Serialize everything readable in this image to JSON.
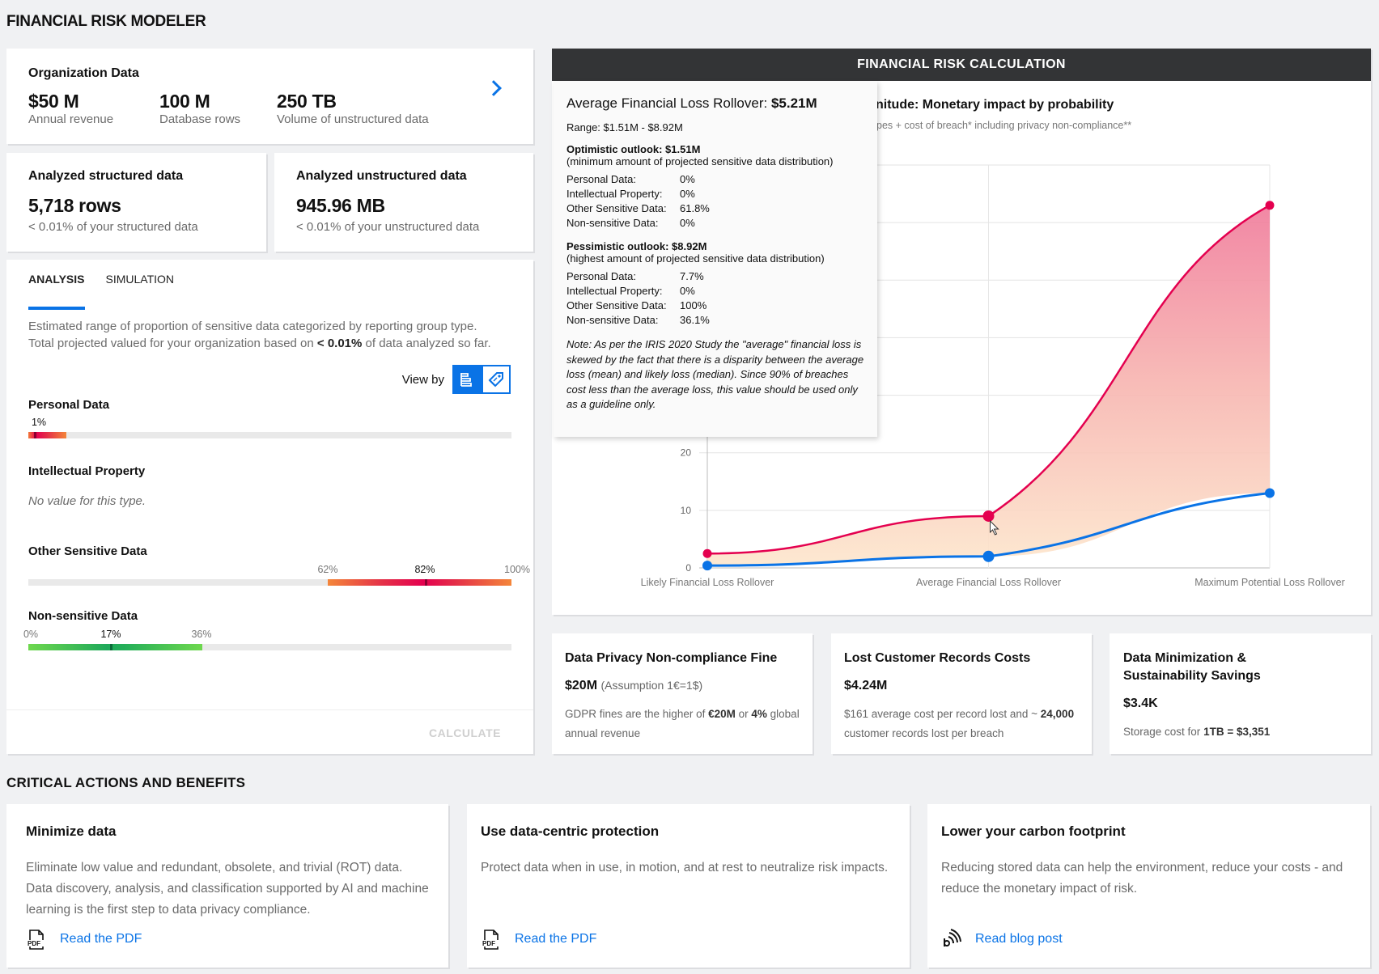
{
  "page_title": "FINANCIAL RISK MODELER",
  "org": {
    "title": "Organization Data",
    "stats": [
      {
        "value": "$50 M",
        "label": "Annual revenue"
      },
      {
        "value": "100 M",
        "label": "Database rows"
      },
      {
        "value": "250 TB",
        "label": "Volume of unstructured data"
      }
    ]
  },
  "analyzed": [
    {
      "title": "Analyzed structured data",
      "value": "5,718 rows",
      "sub": "< 0.01% of your structured data"
    },
    {
      "title": "Analyzed unstructured data",
      "value": "945.96 MB",
      "sub": "< 0.01% of your unstructured data"
    }
  ],
  "analysis": {
    "tabs": [
      {
        "label": "ANALYSIS",
        "active": true
      },
      {
        "label": "SIMULATION",
        "active": false
      }
    ],
    "desc_line1": "Estimated range of proportion of sensitive data categorized by reporting group type.",
    "desc_line2_pre": "Total projected valued for your organization based on ",
    "desc_line2_bold": "< 0.01%",
    "desc_line2_post": " of data analyzed so far.",
    "view_by_label": "View by",
    "view_by_options": [
      {
        "icon": "bar-list-icon",
        "selected": true
      },
      {
        "icon": "tag-icon",
        "selected": false
      }
    ],
    "categories": [
      {
        "name": "Personal Data",
        "min_pct": 0,
        "likely_pct": 1,
        "max_pct": 8,
        "labels": [
          "1%"
        ],
        "color": "hot"
      },
      {
        "name": "Intellectual Property",
        "no_value_text": "No value for this type."
      },
      {
        "name": "Other Sensitive Data",
        "min_pct": 62,
        "likely_pct": 82,
        "max_pct": 100,
        "labels": [
          "62%",
          "82%",
          "100%"
        ],
        "color": "hot"
      },
      {
        "name": "Non-sensitive Data",
        "min_pct": 0,
        "likely_pct": 17,
        "max_pct": 36,
        "labels": [
          "0%",
          "17%",
          "36%"
        ],
        "color": "green"
      }
    ],
    "calculate_label": "CALCULATE"
  },
  "risk_panel": {
    "header": "FINANCIAL RISK CALCULATION",
    "chart_title_visible": "nitude: Monetary impact by probability",
    "chart_subtitle_visible": "pes + cost of breach* including privacy non-compliance**"
  },
  "tooltip": {
    "title_pre": "Average Financial Loss Rollover: ",
    "title_value": "$5.21M",
    "range": "Range: $1.51M - $8.92M",
    "optimistic": {
      "title": "Optimistic outlook: $1.51M",
      "sub": "(minimum amount of projected sensitive data distribution)",
      "rows": [
        [
          "Personal Data:",
          "0%"
        ],
        [
          "Intellectual Property:",
          "0%"
        ],
        [
          "Other Sensitive Data:",
          "61.8%"
        ],
        [
          "Non-sensitive Data:",
          "0%"
        ]
      ]
    },
    "pessimistic": {
      "title": "Pessimistic outlook: $8.92M",
      "sub": "(highest amount of projected sensitive data distribution)",
      "rows": [
        [
          "Personal Data:",
          "7.7%"
        ],
        [
          "Intellectual Property:",
          "0%"
        ],
        [
          "Other Sensitive Data:",
          "100%"
        ],
        [
          "Non-sensitive Data:",
          "36.1%"
        ]
      ]
    },
    "note": "Note: As per the IRIS 2020 Study the \"average\" financial loss is skewed by the fact that there is a disparity between the average loss (mean) and likely loss (median). Since 90% of breaches cost less than the average loss, this value should be used only as a guideline only."
  },
  "chart_data": {
    "type": "area",
    "title": "Magnitude: Monetary impact by probability",
    "categories": [
      "Likely Financial Loss Rollover",
      "Average Financial Loss Rollover",
      "Maximum Potential Loss Rollover"
    ],
    "series": [
      {
        "name": "pessimistic",
        "color": "#e4004f",
        "values": [
          2.5,
          9,
          63
        ]
      },
      {
        "name": "optimistic",
        "color": "#0a73e6",
        "values": [
          0.4,
          2,
          13
        ]
      }
    ],
    "ylim": [
      0,
      70
    ],
    "yticks_visible": [
      0,
      10,
      20
    ],
    "grid": true,
    "xlabel": "",
    "ylabel": ""
  },
  "cost_cards": [
    {
      "title": "Data Privacy Non-compliance Fine",
      "value": "$20M",
      "value_note": "(Assumption 1€=1$)",
      "text_parts": [
        [
          "GDPR fines are the higher of ",
          false
        ],
        [
          "€20M",
          true
        ],
        [
          " or ",
          false
        ],
        [
          "4%",
          true
        ],
        [
          " global annual revenue",
          false
        ]
      ]
    },
    {
      "title": "Lost Customer Records Costs",
      "value": "$4.24M",
      "value_note": "",
      "text_parts": [
        [
          "$161 average cost per record lost and ~ ",
          false
        ],
        [
          "24,000",
          true
        ],
        [
          " customer records lost per breach",
          false
        ]
      ]
    },
    {
      "title": "Data Minimization & Sustainability Savings",
      "value": "$3.4K",
      "value_note": "",
      "text_parts": [
        [
          "Storage cost for ",
          false
        ],
        [
          "1TB = $3,351",
          true
        ]
      ]
    }
  ],
  "critical_title": "CRITICAL ACTIONS AND BENEFITS",
  "actions": [
    {
      "title": "Minimize data",
      "text": "Eliminate low value and redundant, obsolete, and trivial (ROT) data. Data discovery, analysis, and classification supported by AI and machine learning is the first step to data privacy compliance.",
      "link": "Read the PDF",
      "icon": "pdf-icon"
    },
    {
      "title": "Use data-centric protection",
      "text": "Protect data when in use, in motion, and at rest to neutralize risk impacts.",
      "link": "Read the PDF",
      "icon": "pdf-icon"
    },
    {
      "title": "Lower your carbon footprint",
      "text": "Reducing stored data can help the environment, reduce your costs - and reduce the monetary impact of risk.",
      "link": "Read blog post",
      "icon": "blog-icon"
    }
  ]
}
